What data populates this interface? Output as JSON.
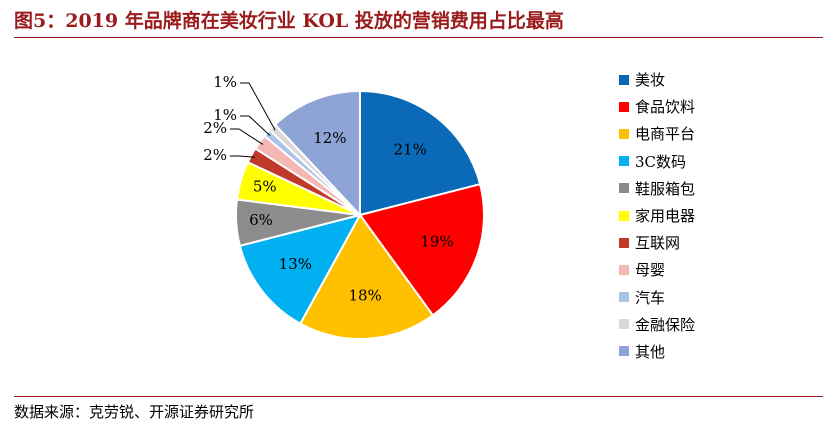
{
  "title": "图5：2019 年品牌商在美妆行业 KOL 投放的营销费用占比最高",
  "source": "数据来源：克劳锐、开源证券研究所",
  "chart_data": {
    "type": "pie",
    "title": "",
    "legend_position": "right",
    "slices": [
      {
        "name": "美妆",
        "value": 21,
        "label": "21%",
        "color": "#0a6ab8"
      },
      {
        "name": "食品饮料",
        "value": 19,
        "label": "19%",
        "color": "#ff0000"
      },
      {
        "name": "电商平台",
        "value": 18,
        "label": "18%",
        "color": "#ffc000"
      },
      {
        "name": "3C数码",
        "value": 13,
        "label": "13%",
        "color": "#00b0f0"
      },
      {
        "name": "鞋服箱包",
        "value": 6,
        "label": "6%",
        "color": "#8c8c8c"
      },
      {
        "name": "家用电器",
        "value": 5,
        "label": "5%",
        "color": "#ffff00"
      },
      {
        "name": "互联网",
        "value": 2,
        "label": "2%",
        "color": "#c0392b"
      },
      {
        "name": "母婴",
        "value": 2,
        "label": "2%",
        "color": "#f4b7b4"
      },
      {
        "name": "汽车",
        "value": 1,
        "label": "1%",
        "color": "#a9c4e8"
      },
      {
        "name": "金融保险",
        "value": 1,
        "label": "1%",
        "color": "#d9d9d9"
      },
      {
        "name": "其他",
        "value": 12,
        "label": "12%",
        "color": "#8ea3d6"
      }
    ]
  }
}
